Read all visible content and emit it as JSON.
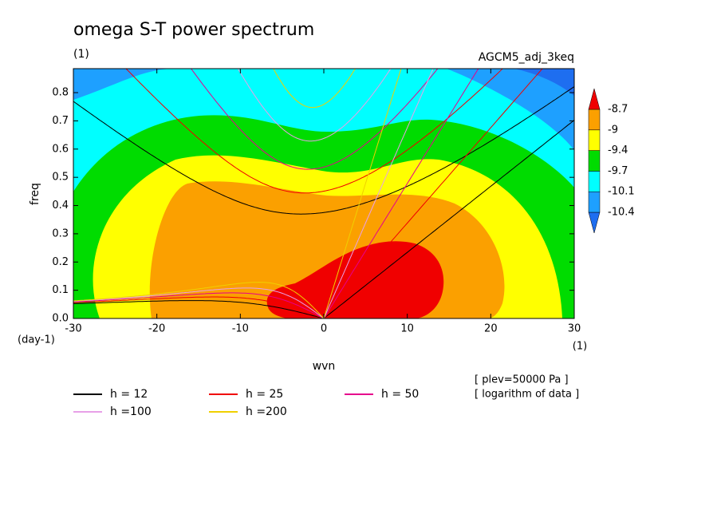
{
  "chart_data": {
    "type": "contour",
    "title": "omega S-T power spectrum",
    "subtitle_left": "(1)",
    "subtitle_right": "AGCM5_adj_3keq",
    "x_label": "wvn",
    "y_label": "freq",
    "x_unit": "(1)",
    "y_unit": "(day-1)",
    "xlim": [
      -30,
      30
    ],
    "xticks": [
      -30,
      -20,
      -10,
      0,
      10,
      20,
      30
    ],
    "ylim": [
      0,
      0.885
    ],
    "yticks": [
      {
        "value": 0,
        "label": "0.0"
      },
      0.1,
      0.2,
      0.3,
      0.4,
      0.5,
      0.6,
      0.7,
      0.8
    ],
    "colorbar": {
      "levels": [
        -10.4,
        -10.1,
        -9.7,
        -9.4,
        -9,
        -8.7
      ],
      "colors": [
        "#1e6ef0",
        "#1ea0ff",
        "#00ffff",
        "#00dc00",
        "#ffff00",
        "#fba000",
        "#f00000"
      ]
    },
    "series": [
      {
        "name": "h = 12",
        "h": 12,
        "color": "#000000"
      },
      {
        "name": "h = 25",
        "h": 25,
        "color": "#f00000"
      },
      {
        "name": "h = 50",
        "h": 50,
        "color": "#e6008c"
      },
      {
        "name": "h =100",
        "h": 100,
        "color": "#e8a0e8"
      },
      {
        "name": "h =200",
        "h": 200,
        "color": "#f0d000"
      }
    ],
    "notes": [
      "[ plev=50000 Pa ]",
      "[ logarithm of data ]"
    ]
  }
}
